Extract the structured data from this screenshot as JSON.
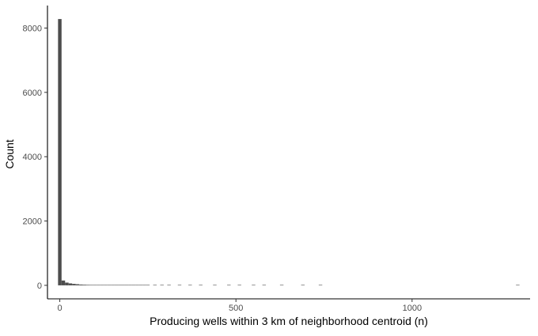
{
  "chart_data": {
    "type": "bar",
    "subtype": "histogram",
    "title": "",
    "xlabel": "Producing wells within 3 km of neighborhood centroid (n)",
    "ylabel": "Count",
    "xlim": [
      -35,
      1335
    ],
    "ylim": [
      -420,
      8700
    ],
    "x_ticks": [
      0,
      500,
      1000
    ],
    "x_tick_labels": [
      "0",
      "500",
      "1000"
    ],
    "y_ticks": [
      0,
      2000,
      4000,
      6000,
      8000
    ],
    "y_tick_labels": [
      "0",
      "2000",
      "4000",
      "6000",
      "8000"
    ],
    "grid": false,
    "legend": "none",
    "bin_width": 10,
    "bins": [
      {
        "x0": -5,
        "x1": 5,
        "count": 8280
      },
      {
        "x0": 5,
        "x1": 15,
        "count": 150
      },
      {
        "x0": 15,
        "x1": 25,
        "count": 85
      },
      {
        "x0": 25,
        "x1": 35,
        "count": 60
      },
      {
        "x0": 35,
        "x1": 45,
        "count": 45
      },
      {
        "x0": 45,
        "x1": 55,
        "count": 35
      },
      {
        "x0": 55,
        "x1": 65,
        "count": 25
      },
      {
        "x0": 65,
        "x1": 75,
        "count": 20
      },
      {
        "x0": 75,
        "x1": 85,
        "count": 16
      },
      {
        "x0": 85,
        "x1": 95,
        "count": 13
      },
      {
        "x0": 95,
        "x1": 105,
        "count": 11
      },
      {
        "x0": 105,
        "x1": 115,
        "count": 9
      },
      {
        "x0": 115,
        "x1": 125,
        "count": 8
      },
      {
        "x0": 125,
        "x1": 135,
        "count": 7
      },
      {
        "x0": 135,
        "x1": 145,
        "count": 6
      },
      {
        "x0": 145,
        "x1": 155,
        "count": 6
      },
      {
        "x0": 155,
        "x1": 165,
        "count": 5
      },
      {
        "x0": 165,
        "x1": 175,
        "count": 5
      },
      {
        "x0": 175,
        "x1": 185,
        "count": 4
      },
      {
        "x0": 185,
        "x1": 195,
        "count": 4
      },
      {
        "x0": 195,
        "x1": 205,
        "count": 4
      },
      {
        "x0": 205,
        "x1": 215,
        "count": 3
      },
      {
        "x0": 215,
        "x1": 225,
        "count": 3
      },
      {
        "x0": 225,
        "x1": 235,
        "count": 3
      },
      {
        "x0": 235,
        "x1": 245,
        "count": 2
      },
      {
        "x0": 245,
        "x1": 255,
        "count": 2
      },
      {
        "x0": 265,
        "x1": 275,
        "count": 2
      },
      {
        "x0": 285,
        "x1": 295,
        "count": 2
      },
      {
        "x0": 305,
        "x1": 315,
        "count": 2
      },
      {
        "x0": 335,
        "x1": 345,
        "count": 1
      },
      {
        "x0": 365,
        "x1": 375,
        "count": 1
      },
      {
        "x0": 395,
        "x1": 405,
        "count": 1
      },
      {
        "x0": 435,
        "x1": 445,
        "count": 1
      },
      {
        "x0": 475,
        "x1": 485,
        "count": 1
      },
      {
        "x0": 505,
        "x1": 515,
        "count": 1
      },
      {
        "x0": 545,
        "x1": 555,
        "count": 1
      },
      {
        "x0": 575,
        "x1": 585,
        "count": 1
      },
      {
        "x0": 625,
        "x1": 635,
        "count": 1
      },
      {
        "x0": 685,
        "x1": 695,
        "count": 1
      },
      {
        "x0": 735,
        "x1": 745,
        "count": 1
      },
      {
        "x0": 1295,
        "x1": 1305,
        "count": 1
      }
    ],
    "colors": {
      "bar_fill": "#4d4d4d",
      "axis_line": "#000000",
      "tick_label": "#4d4d4d",
      "background": "#ffffff"
    }
  }
}
